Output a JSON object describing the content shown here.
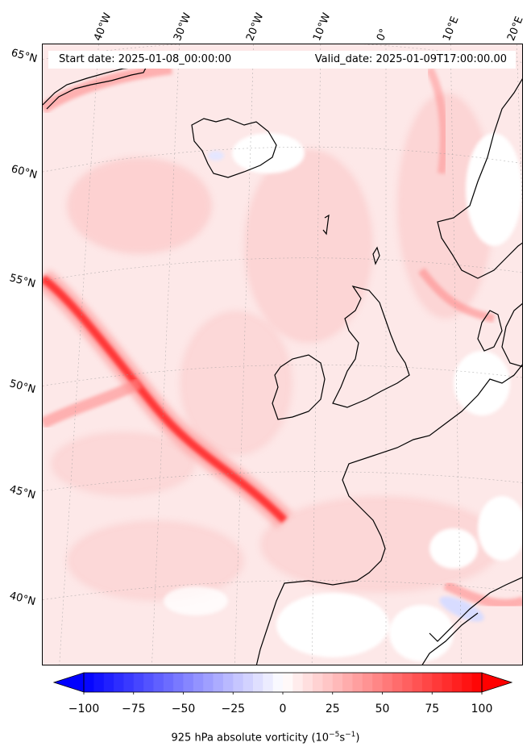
{
  "map": {
    "start_date": "Start date: 2025-01-08_00:00:00",
    "valid_date": "Valid_date: 2025-01-09T17:00:00.00",
    "longitude_labels": [
      "40°W",
      "30°W",
      "20°W",
      "10°W",
      "0°",
      "10°E",
      "20°E"
    ],
    "latitude_labels": [
      "65°N",
      "60°N",
      "55°N",
      "50°N",
      "45°N",
      "40°N"
    ],
    "field_colors": {
      "background": "#fde8e8",
      "strong": "#ff2020",
      "medium": "#ff8a8a",
      "weak": "#fcc8c8",
      "neutral": "#ffffff",
      "negative": "#d8dcff"
    }
  },
  "colorbar": {
    "ticks": [
      "−100",
      "−75",
      "−50",
      "−25",
      "0",
      "25",
      "50",
      "75",
      "100"
    ],
    "values": [
      -100,
      -75,
      -50,
      -25,
      0,
      25,
      50,
      75,
      100
    ],
    "label_main": "925 hPa absolute vorticity (10",
    "label_exp1": "−5",
    "label_mid": "s",
    "label_exp2": "−1",
    "label_end": ")",
    "cmap": "bwr"
  }
}
